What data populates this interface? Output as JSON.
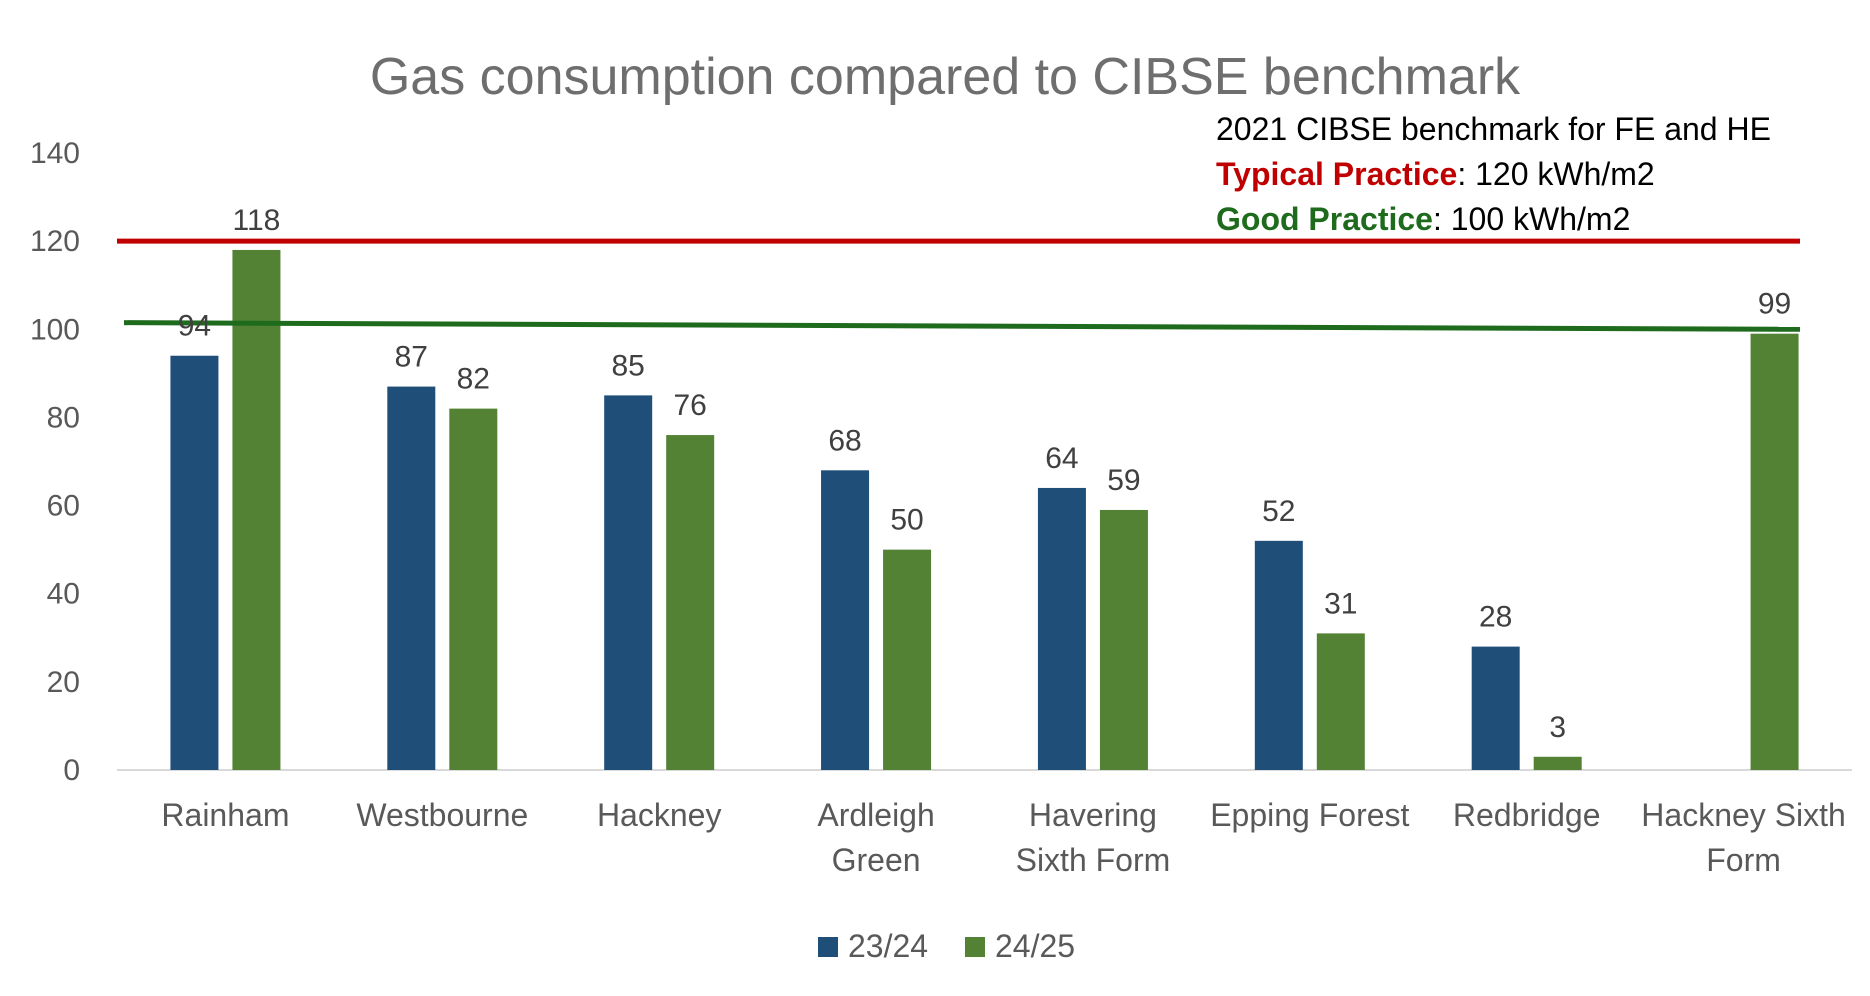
{
  "chart_data": {
    "type": "bar",
    "title": "Gas consumption compared to CIBSE benchmark",
    "xlabel": "",
    "ylabel": "",
    "ylim": [
      0,
      140
    ],
    "yticks": [
      0,
      20,
      40,
      60,
      80,
      100,
      120,
      140
    ],
    "categories": [
      [
        "Rainham"
      ],
      [
        "Westbourne"
      ],
      [
        "Hackney"
      ],
      [
        "Ardleigh",
        "Green"
      ],
      [
        "Havering",
        "Sixth Form"
      ],
      [
        "Epping Forest"
      ],
      [
        "Redbridge"
      ],
      [
        "Hackney Sixth",
        "Form"
      ]
    ],
    "series": [
      {
        "name": "23/24",
        "color": "#1f4e79",
        "values": [
          94,
          87,
          85,
          68,
          64,
          52,
          28,
          null
        ]
      },
      {
        "name": "24/25",
        "color": "#548235",
        "values": [
          118,
          82,
          76,
          50,
          59,
          31,
          3,
          99
        ]
      }
    ],
    "reference_lines": [
      {
        "name": "Typical Practice",
        "value_start": 120,
        "value_end": 120,
        "color": "#c00000"
      },
      {
        "name": "Good Practice",
        "value_start": 101.5,
        "value_end": 100,
        "color": "#1e6b1e"
      }
    ],
    "annotation": {
      "heading": "2021 CIBSE benchmark for FE and HE",
      "lines": [
        {
          "label": "Typical Practice",
          "value": ": 120 kWh/m2",
          "color": "#c00000"
        },
        {
          "label": "Good Practice",
          "value": ": 100 kWh/m2",
          "color": "#1e6b1e"
        }
      ]
    },
    "legend_position": "bottom",
    "grid": false
  }
}
